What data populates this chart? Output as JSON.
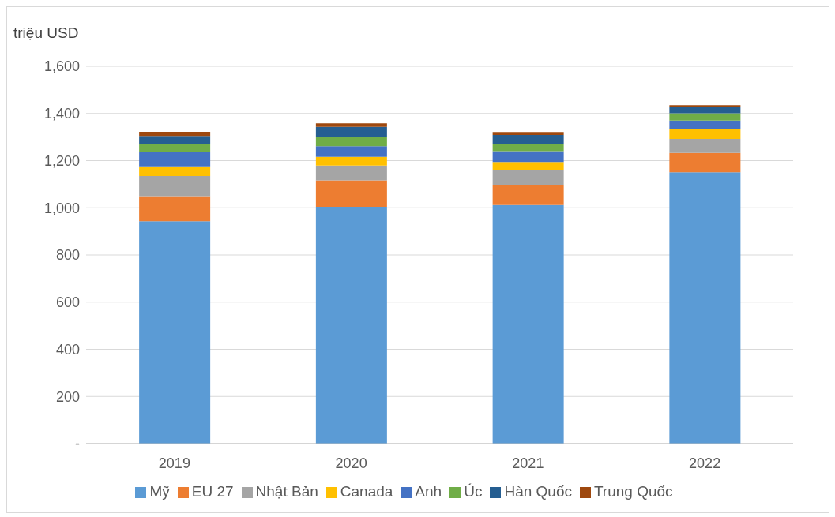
{
  "chart_data": {
    "type": "bar",
    "stacked": true,
    "ylabel": "triệu USD",
    "categories": [
      "2019",
      "2020",
      "2021",
      "2022"
    ],
    "series": [
      {
        "name": "Mỹ",
        "color": "#5b9bd5",
        "values": [
          943,
          1004,
          1012,
          1151
        ]
      },
      {
        "name": "EU 27",
        "color": "#ed7d31",
        "values": [
          106,
          112,
          85,
          82
        ]
      },
      {
        "name": "Nhật Bản",
        "color": "#a5a5a5",
        "values": [
          86,
          63,
          63,
          59
        ]
      },
      {
        "name": "Canada",
        "color": "#ffc000",
        "values": [
          41,
          37,
          34,
          41
        ]
      },
      {
        "name": "Anh",
        "color": "#4472c4",
        "values": [
          60,
          45,
          46,
          37
        ]
      },
      {
        "name": "Úc",
        "color": "#70ad47",
        "values": [
          35,
          38,
          30,
          31
        ]
      },
      {
        "name": "Hàn Quốc",
        "color": "#255e91",
        "values": [
          34,
          44,
          39,
          27
        ]
      },
      {
        "name": "Trung Quốc",
        "color": "#9e480e",
        "values": [
          17,
          15,
          12,
          7
        ]
      }
    ],
    "ylim": [
      0,
      1600
    ],
    "yticks": [
      {
        "value": 0,
        "label": "-"
      },
      {
        "value": 200,
        "label": "200"
      },
      {
        "value": 400,
        "label": "400"
      },
      {
        "value": 600,
        "label": "600"
      },
      {
        "value": 800,
        "label": "800"
      },
      {
        "value": 1000,
        "label": "1,000"
      },
      {
        "value": 1200,
        "label": "1,200"
      },
      {
        "value": 1400,
        "label": "1,400"
      },
      {
        "value": 1600,
        "label": "1,600"
      }
    ],
    "grid": "y",
    "legend": "bottom"
  }
}
